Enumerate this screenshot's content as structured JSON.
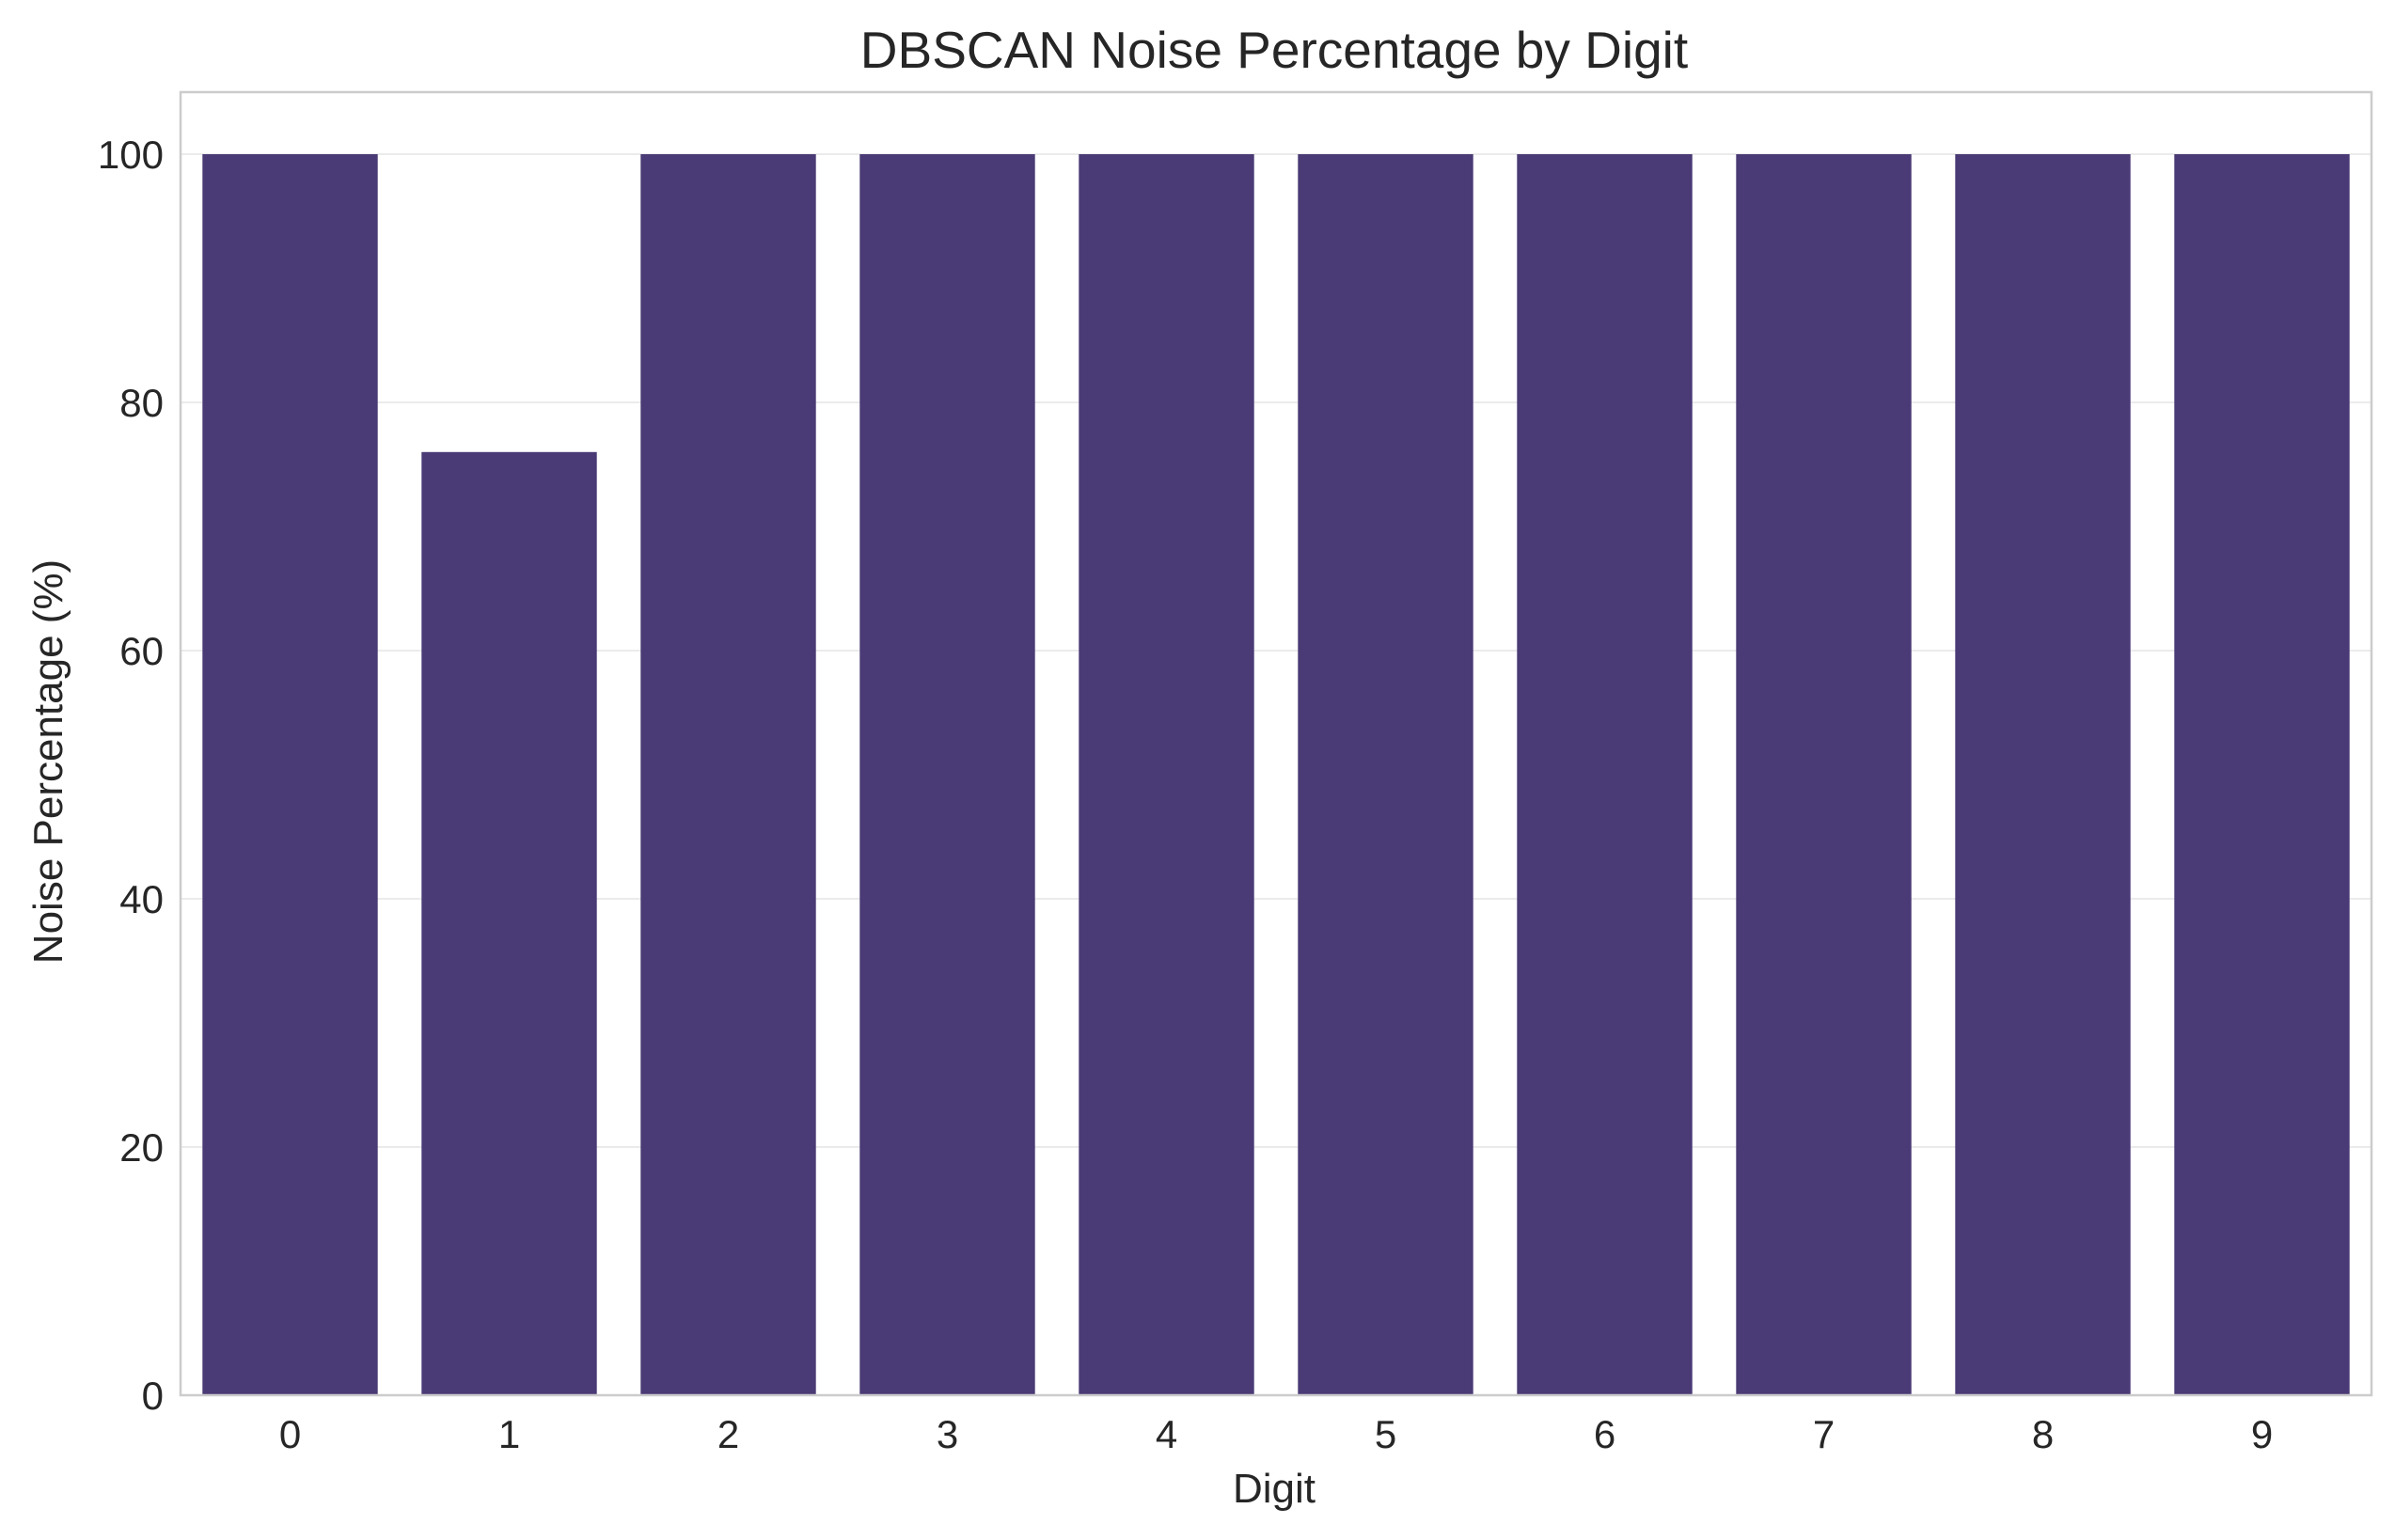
{
  "chart_data": {
    "type": "bar",
    "title": "DBSCAN Noise Percentage by Digit",
    "xlabel": "Digit",
    "ylabel": "Noise Percentage (%)",
    "categories": [
      "0",
      "1",
      "2",
      "3",
      "4",
      "5",
      "6",
      "7",
      "8",
      "9"
    ],
    "values": [
      100,
      76,
      100,
      100,
      100,
      100,
      100,
      100,
      100,
      100
    ],
    "ylim": [
      0,
      105
    ],
    "yticks": [
      0,
      20,
      40,
      60,
      80,
      100
    ],
    "grid": true,
    "legend": "none",
    "colors": {
      "bar": "#4a3a75",
      "grid": "#ebebeb",
      "spine": "#cccccc",
      "text": "#262626"
    }
  }
}
